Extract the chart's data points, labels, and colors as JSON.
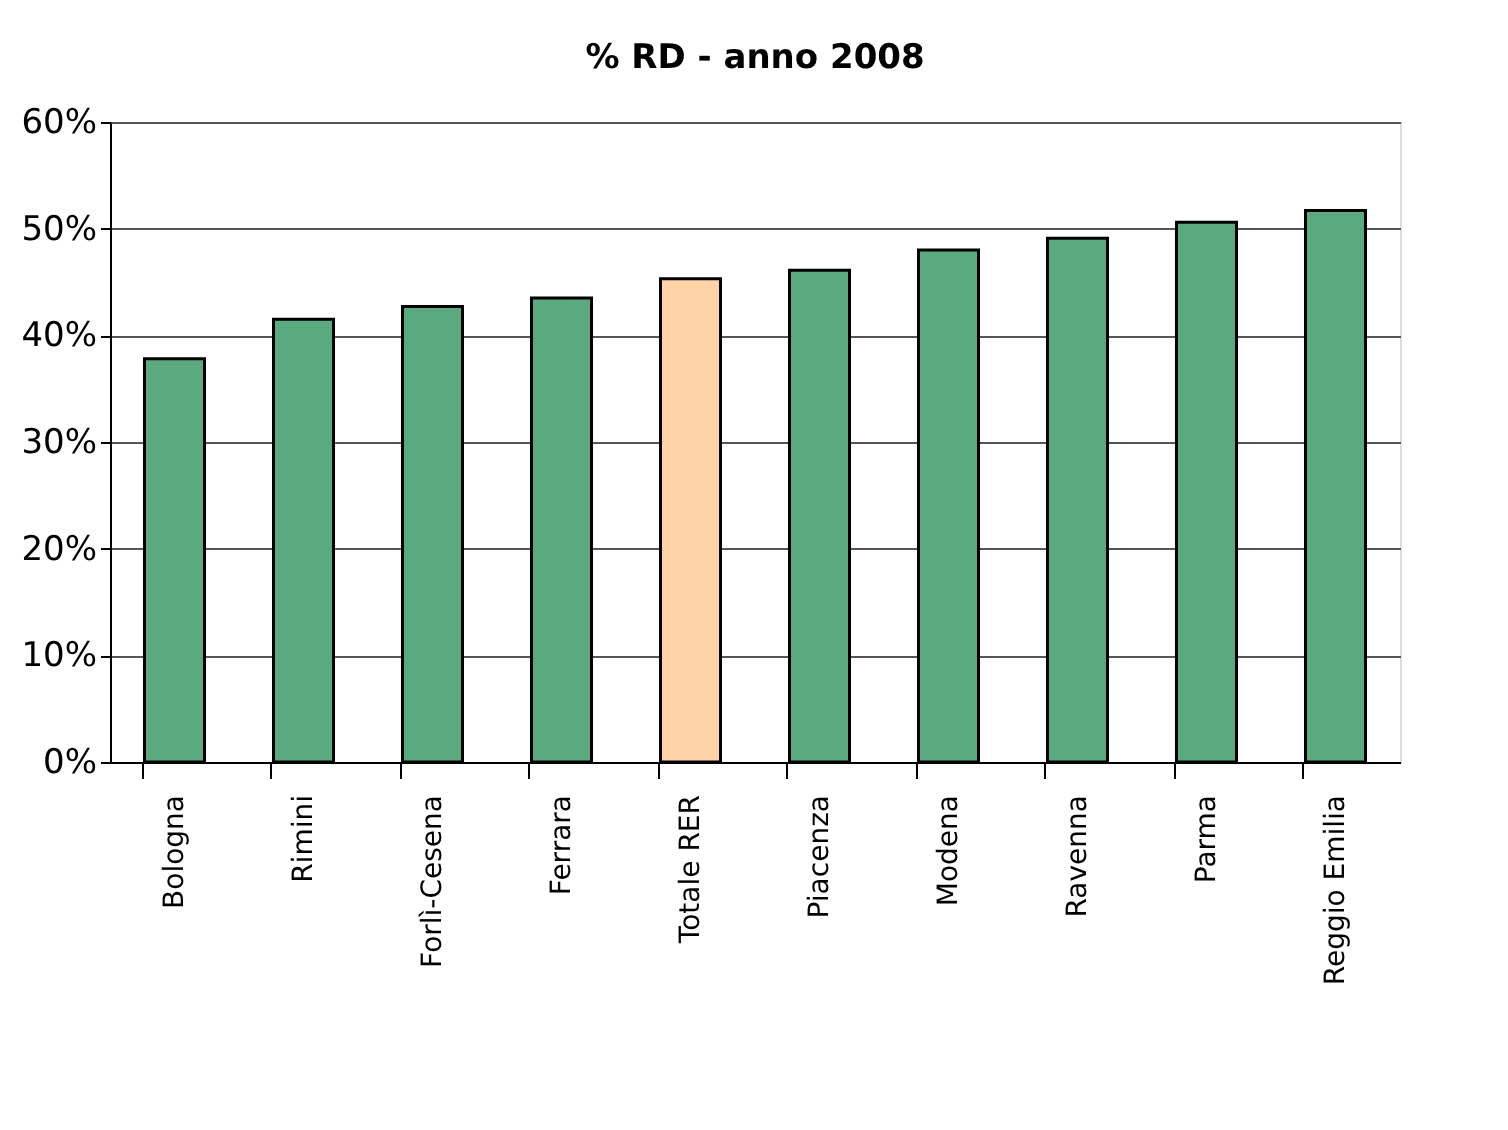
{
  "chart_data": {
    "type": "bar",
    "title": "% RD - anno 2008",
    "categories": [
      "Bologna",
      "Rimini",
      "Forlì-Cesena",
      "Ferrara",
      "Totale RER",
      "Piacenza",
      "Modena",
      "Ravenna",
      "Parma",
      "Reggio Emilia"
    ],
    "values": [
      37.8,
      41.5,
      42.7,
      43.5,
      45.3,
      46.1,
      48.0,
      49.1,
      50.6,
      51.7
    ],
    "colors": [
      "#5aa97f",
      "#5aa97f",
      "#5aa97f",
      "#5aa97f",
      "#ffd3a6",
      "#5aa97f",
      "#5aa97f",
      "#5aa97f",
      "#5aa97f",
      "#5aa97f"
    ],
    "ylim": [
      0,
      60
    ],
    "yticks": [
      {
        "value": 0,
        "label": "0%"
      },
      {
        "value": 10,
        "label": "10%"
      },
      {
        "value": 20,
        "label": "20%"
      },
      {
        "value": 30,
        "label": "30%"
      },
      {
        "value": 40,
        "label": "40%"
      },
      {
        "value": 50,
        "label": "50%"
      },
      {
        "value": 60,
        "label": "60%"
      }
    ],
    "grid": "y"
  }
}
